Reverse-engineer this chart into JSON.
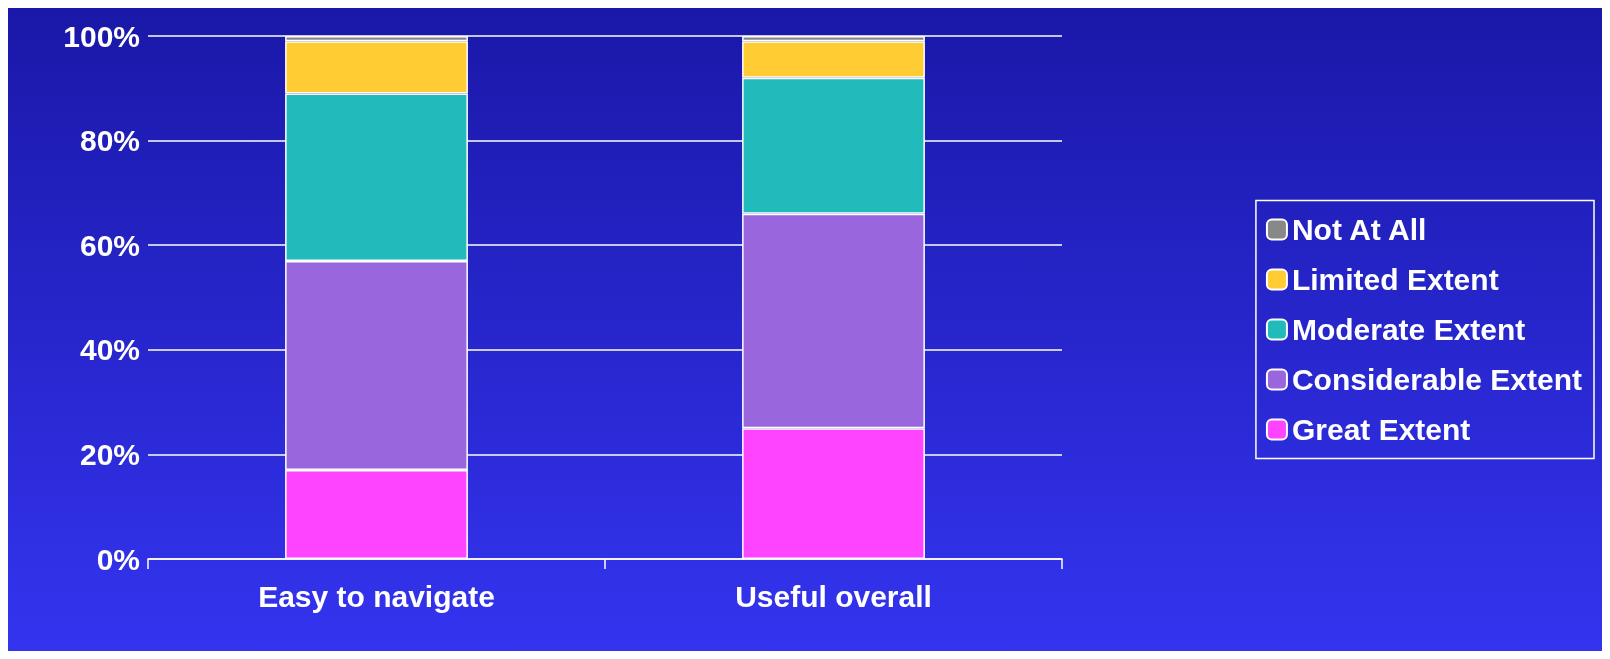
{
  "chart_data": {
    "type": "bar",
    "stacked": true,
    "categories": [
      "Easy to navigate",
      "Useful overall"
    ],
    "series": [
      {
        "name": "Great Extent",
        "color": "#ff44ff",
        "values": [
          17,
          25
        ]
      },
      {
        "name": "Considerable Extent",
        "color": "#9966dd",
        "values": [
          40,
          41
        ]
      },
      {
        "name": "Moderate Extent",
        "color": "#22bbbb",
        "values": [
          32,
          26
        ]
      },
      {
        "name": "Limited Extent",
        "color": "#ffcc33",
        "values": [
          10,
          7
        ]
      },
      {
        "name": "Not At All",
        "color": "#888888",
        "values": [
          1,
          1
        ]
      }
    ],
    "ylim": [
      0,
      100
    ],
    "yticks": [
      {
        "value": 0,
        "label": "0%"
      },
      {
        "value": 20,
        "label": "20%"
      },
      {
        "value": 40,
        "label": "40%"
      },
      {
        "value": 60,
        "label": "60%"
      },
      {
        "value": 80,
        "label": "80%"
      },
      {
        "value": 100,
        "label": "100%"
      }
    ],
    "grid": "y",
    "legend": "right"
  }
}
